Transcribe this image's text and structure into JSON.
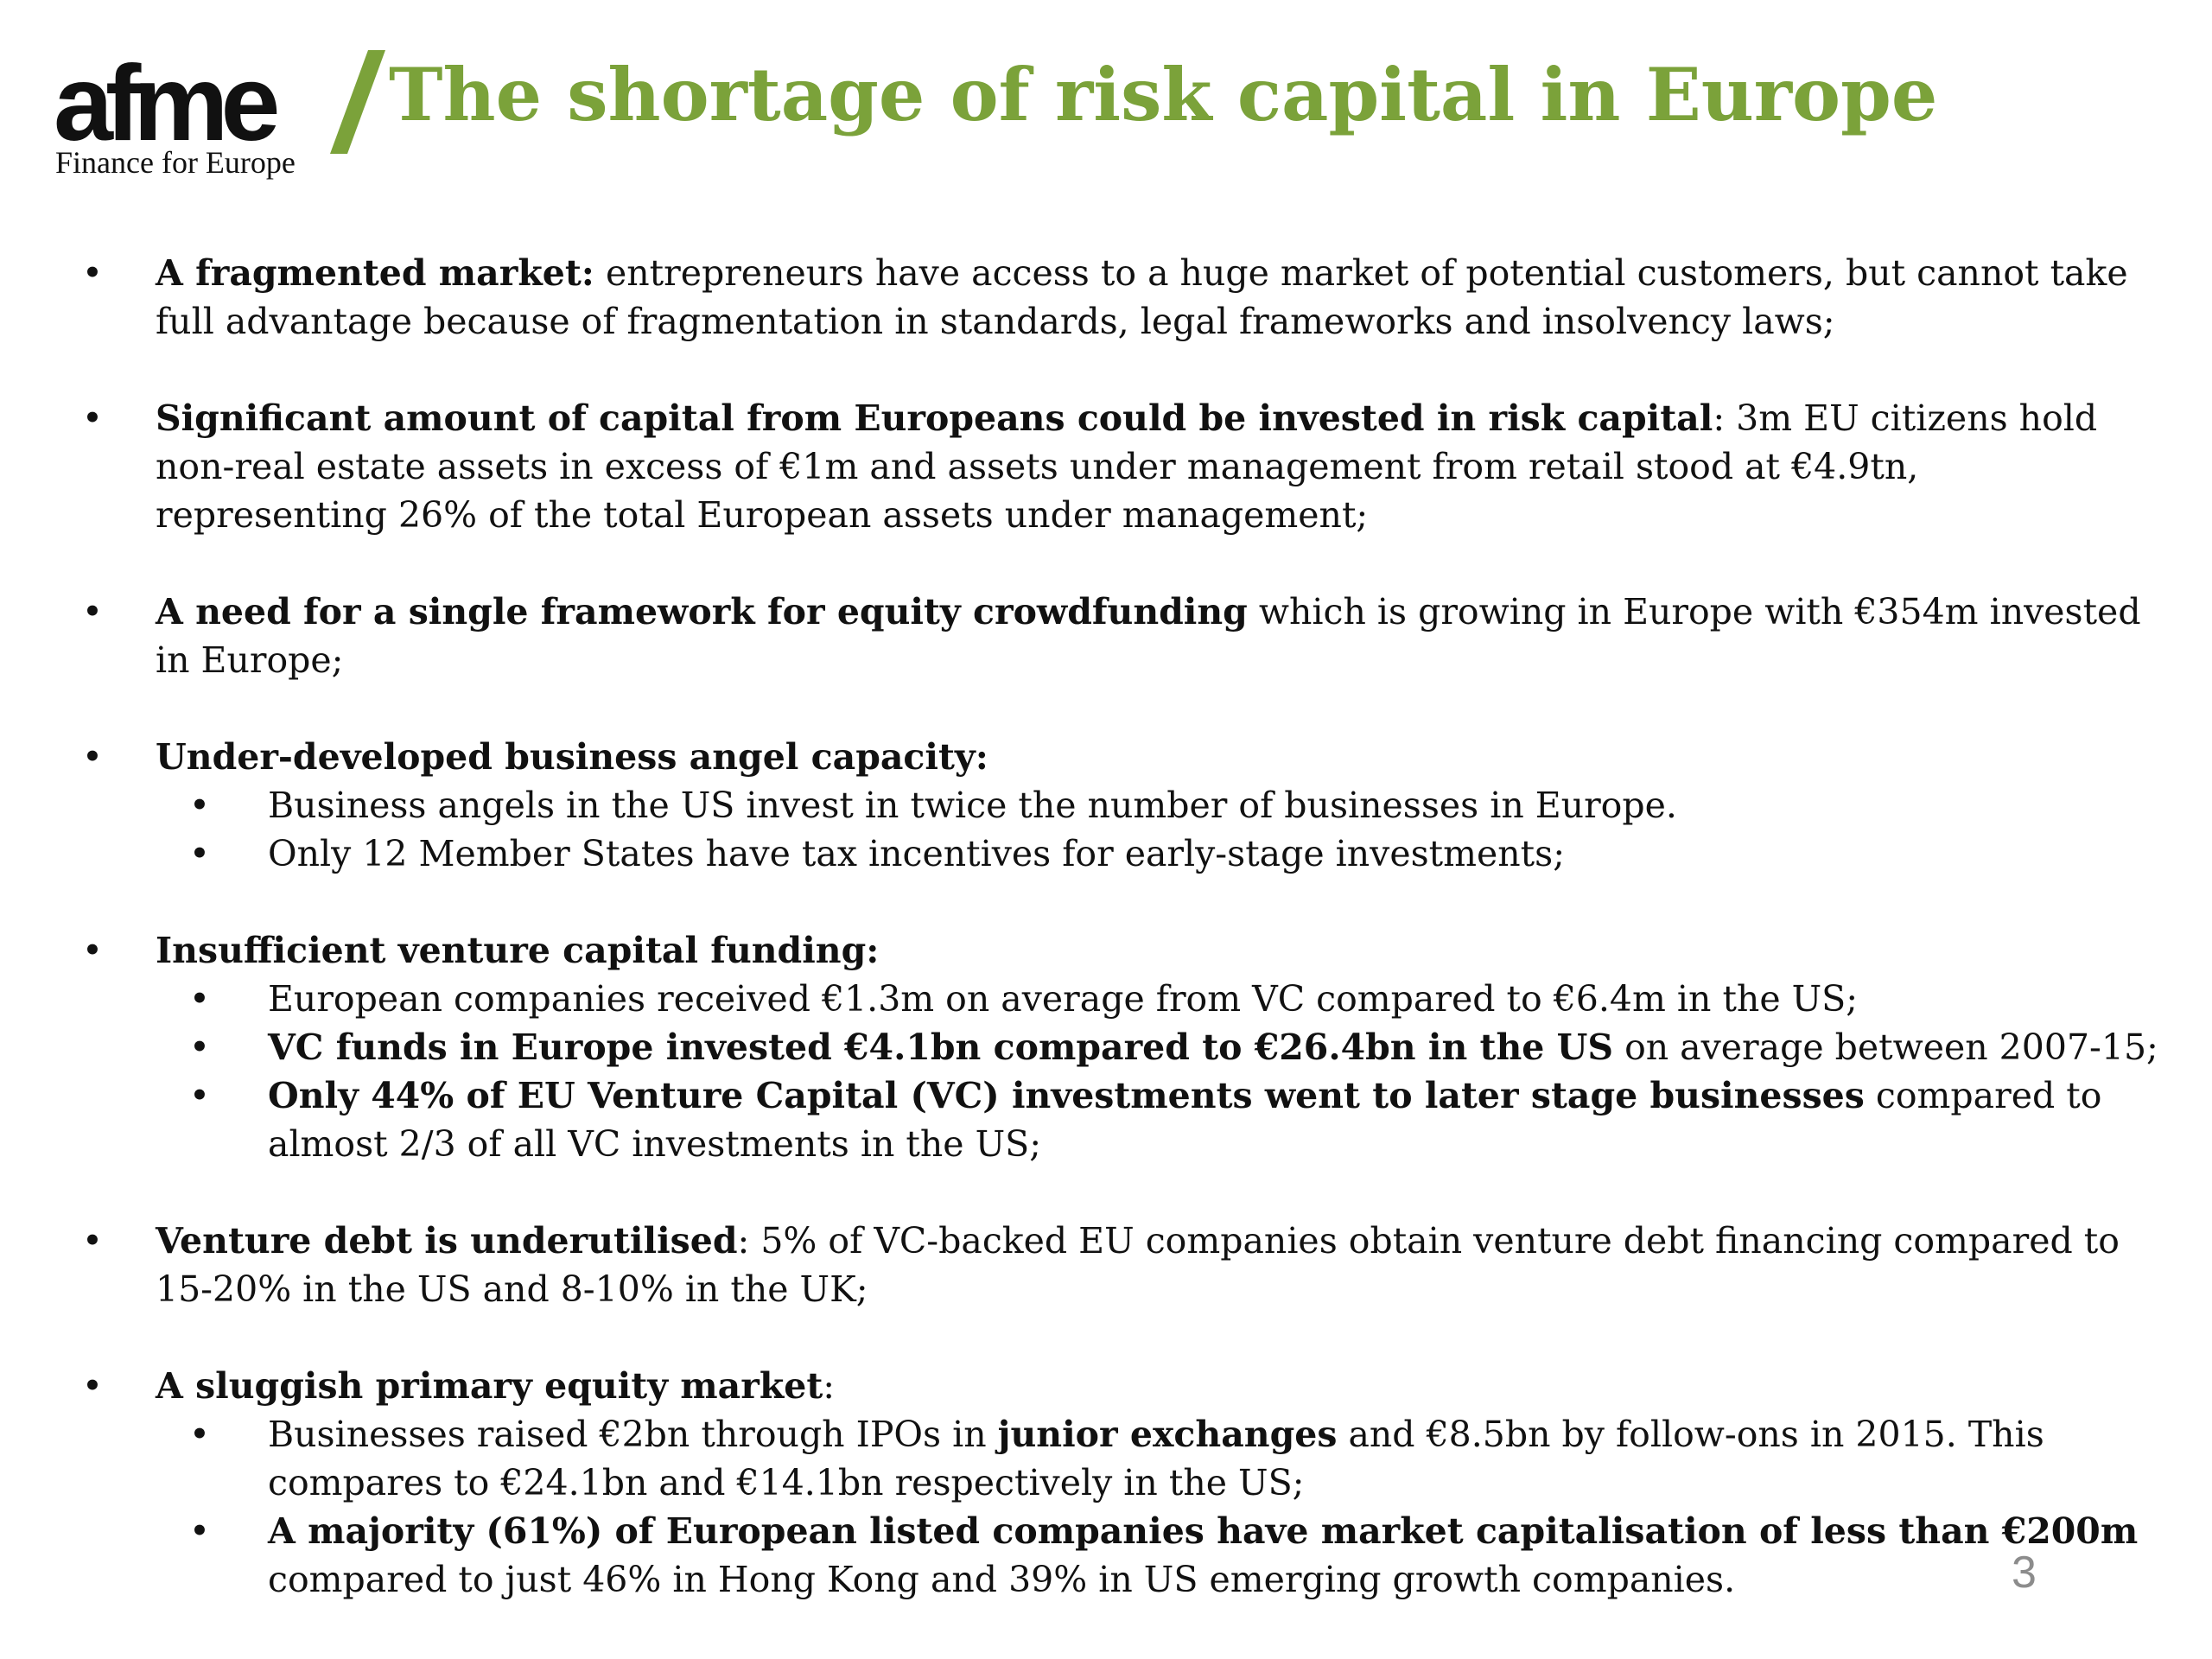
{
  "logo": {
    "word": "afme",
    "tagline": "Finance for Europe",
    "slash_color": "#7ba23a"
  },
  "title": "The shortage of risk capital in Europe",
  "colors": {
    "title": "#7ba23a",
    "text": "#111111",
    "page_number": "#8c8c8c"
  },
  "bullets": [
    {
      "lead": "A fragmented market:",
      "text": " entrepreneurs have access to a huge market of potential customers, but cannot take full advantage because of fragmentation in standards, legal frameworks and insolvency laws;"
    },
    {
      "lead": "Significant amount of capital from Europeans could be invested in risk capital",
      "text": ": 3m EU citizens hold non-real estate assets in excess of €1m and assets under management from retail stood at €4.9tn, representing 26% of the total European assets under management;"
    },
    {
      "lead": "A need for a single framework for equity crowdfunding",
      "text": " which is growing in Europe with €354m invested in Europe;"
    },
    {
      "lead": "Under-developed business angel capacity:",
      "subs": [
        {
          "text": "Business angels in the US invest in twice the number of businesses in Europe."
        },
        {
          "text": "Only 12 Member States have tax incentives for early-stage investments;"
        }
      ]
    },
    {
      "lead": "Insufficient venture capital funding:",
      "subs": [
        {
          "text": "European companies received €1.3m on average from VC compared to €6.4m in the US;"
        },
        {
          "bold": "VC funds in Europe invested €4.1bn compared to €26.4bn in the US",
          "after": " on average between 2007-15;"
        },
        {
          "bold": "Only 44% of EU Venture Capital (VC) investments went to later stage businesses",
          "after": " compared to almost 2/3 of all VC investments in the US;"
        }
      ]
    },
    {
      "lead": "Venture debt is underutilised",
      "text": ": 5% of VC-backed EU companies obtain venture debt financing compared to 15-20% in the US and 8-10% in the UK;"
    },
    {
      "lead": "A sluggish primary equity market",
      "text": ":",
      "subs": [
        {
          "before": "Businesses raised €2bn through IPOs in ",
          "bold": "junior exchanges",
          "after": " and €8.5bn by follow-ons in 2015. This compares to €24.1bn and €14.1bn respectively in the US;"
        },
        {
          "bold": "A majority (61%) of European listed companies have market capitalisation of less than €200m",
          "after": " compared to just 46% in Hong Kong and 39% in US emerging growth companies."
        }
      ]
    }
  ],
  "bullet_glyph": "•",
  "page_number": "3"
}
